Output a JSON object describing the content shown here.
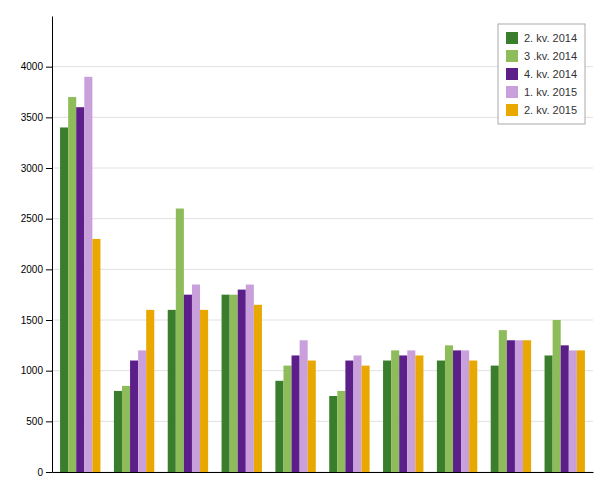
{
  "chart_data": {
    "type": "bar",
    "categories": [
      null,
      null,
      null,
      null,
      null,
      null,
      null,
      null,
      null,
      null
    ],
    "series": [
      {
        "name": "2. kv. 2014",
        "color": "#3a7d2c",
        "values": [
          3400,
          800,
          1600,
          1750,
          900,
          750,
          1100,
          1100,
          1050,
          1150
        ]
      },
      {
        "name": "3 .kv. 2014",
        "color": "#8fbc5a",
        "values": [
          3700,
          850,
          2600,
          1750,
          1050,
          800,
          1200,
          1250,
          1400,
          1500
        ]
      },
      {
        "name": "4. kv. 2014",
        "color": "#5c1f8a",
        "values": [
          3600,
          1100,
          1750,
          1800,
          1150,
          1100,
          1150,
          1200,
          1300,
          1250
        ]
      },
      {
        "name": "1. kv. 2015",
        "color": "#c9a0dc",
        "values": [
          3900,
          1200,
          1850,
          1850,
          1300,
          1150,
          1200,
          1200,
          1300,
          1200
        ]
      },
      {
        "name": "2. kv. 2015",
        "color": "#e8a800",
        "values": [
          2300,
          1600,
          1600,
          1650,
          1100,
          1050,
          1150,
          1100,
          1300,
          1200
        ]
      }
    ],
    "ylim": [
      0,
      4500
    ],
    "yticks": [
      0,
      500,
      1000,
      1500,
      2000,
      2500,
      3000,
      3500,
      4000
    ],
    "grid": true,
    "legend": "top-right",
    "tick_labels": "y"
  }
}
